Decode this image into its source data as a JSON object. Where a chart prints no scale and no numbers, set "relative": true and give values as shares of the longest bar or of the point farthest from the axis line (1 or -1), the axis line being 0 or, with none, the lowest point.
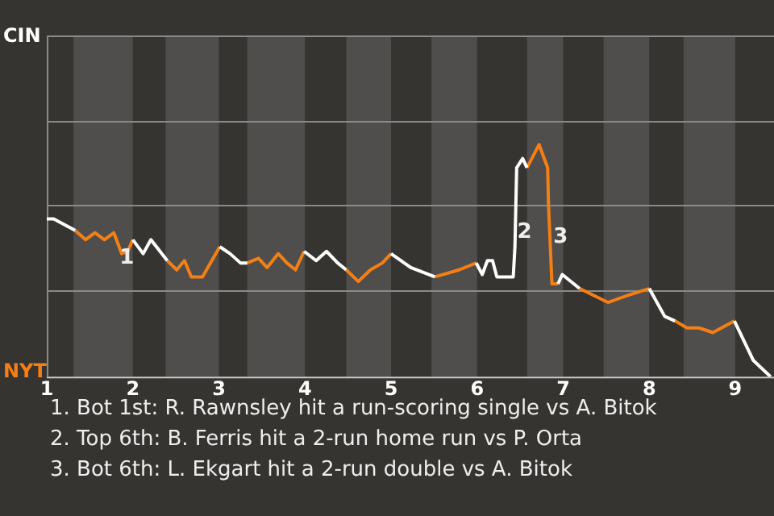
{
  "chart_data": {
    "type": "line",
    "relative": true,
    "legend": "left",
    "marker": "none",
    "line_style": "solid",
    "x": [
      1.0,
      1.08,
      1.33,
      1.45,
      1.56,
      1.67,
      1.78,
      1.87,
      1.94,
      2.0,
      2.12,
      2.21,
      2.4,
      2.51,
      2.6,
      2.68,
      2.81,
      3.01,
      3.13,
      3.25,
      3.33,
      3.46,
      3.56,
      3.69,
      3.79,
      3.89,
      3.99,
      4.13,
      4.25,
      4.38,
      4.48,
      4.62,
      4.76,
      4.9,
      5.0,
      5.23,
      5.51,
      5.79,
      5.99,
      6.06,
      6.12,
      6.18,
      6.23,
      6.42,
      6.44,
      6.46,
      6.53,
      6.58,
      6.72,
      6.82,
      6.83,
      6.87,
      6.94,
      6.99,
      7.19,
      7.52,
      7.75,
      8.0,
      8.18,
      8.3,
      8.44,
      8.58,
      8.74,
      8.99,
      9.21,
      9.41
    ],
    "xlim": [
      1,
      9.45
    ],
    "xticks": [
      1,
      2,
      3,
      4,
      5,
      6,
      7,
      8,
      9
    ],
    "series": [
      {
        "name": "CIN",
        "color": "#ffffff",
        "values": [
          0.68,
          0.68,
          0.63,
          null,
          null,
          null,
          null,
          null,
          null,
          0.59,
          0.53,
          0.59,
          0.5,
          null,
          null,
          null,
          null,
          0.56,
          0.53,
          0.49,
          0.49,
          null,
          null,
          null,
          null,
          null,
          0.54,
          0.5,
          0.54,
          0.49,
          0.46,
          null,
          null,
          null,
          0.53,
          0.47,
          0.43,
          null,
          0.49,
          0.44,
          0.5,
          0.5,
          0.43,
          0.43,
          0.56,
          0.9,
          0.94,
          0.9,
          null,
          null,
          null,
          null,
          0.4,
          0.44,
          0.38,
          null,
          null,
          0.38,
          0.26,
          0.24,
          null,
          null,
          null,
          0.24,
          0.07,
          0
        ]
      },
      {
        "name": "NYT",
        "color": "#f47f14",
        "values": [
          null,
          null,
          0.63,
          0.59,
          0.62,
          0.59,
          0.62,
          0.53,
          0.54,
          0.59,
          null,
          null,
          0.5,
          0.46,
          0.5,
          0.43,
          0.43,
          0.56,
          null,
          null,
          0.49,
          0.51,
          0.47,
          0.53,
          0.49,
          0.46,
          0.54,
          null,
          null,
          null,
          0.46,
          0.41,
          0.46,
          0.49,
          0.53,
          null,
          0.43,
          0.46,
          0.49,
          null,
          null,
          null,
          null,
          null,
          null,
          null,
          null,
          0.9,
          1,
          0.9,
          0.74,
          0.4,
          0.4,
          null,
          0.38,
          0.32,
          0.35,
          0.38,
          null,
          0.24,
          0.21,
          0.21,
          0.19,
          0.24,
          null,
          null
        ]
      }
    ],
    "bands": [
      {
        "axis": "x",
        "from": 1.31,
        "to": 2.0,
        "color": "#4f4e4c"
      },
      {
        "axis": "x",
        "from": 2.38,
        "to": 3.0,
        "color": "#4f4e4c"
      },
      {
        "axis": "x",
        "from": 3.33,
        "to": 4.0,
        "color": "#4f4e4c"
      },
      {
        "axis": "x",
        "from": 4.48,
        "to": 5.0,
        "color": "#4f4e4c"
      },
      {
        "axis": "x",
        "from": 5.47,
        "to": 6.0,
        "color": "#4f4e4c"
      },
      {
        "axis": "x",
        "from": 6.58,
        "to": 7.0,
        "color": "#4f4e4c"
      },
      {
        "axis": "x",
        "from": 7.47,
        "to": 8.0,
        "color": "#4f4e4c"
      },
      {
        "axis": "x",
        "from": 8.4,
        "to": 9.0,
        "color": "#4f4e4c"
      }
    ],
    "ref_lines": [
      {
        "axis": "y",
        "value": 0.37,
        "color": "#8a8a8a"
      },
      {
        "axis": "y",
        "value": 0.74,
        "color": "#8a8a8a"
      },
      {
        "axis": "y",
        "value": 1.1,
        "color": "#8a8a8a"
      }
    ],
    "annotations": [
      {
        "text": "1",
        "x": 1.93,
        "y": 0.51
      },
      {
        "text": "2",
        "x": 6.55,
        "y": 0.62
      },
      {
        "text": "3",
        "x": 6.97,
        "y": 0.6
      },
      "1. Bot 1st: R. Rawnsley hit a run-scoring single vs A. Bitok",
      "2. Top 6th: B. Ferris hit a 2-run home run vs P. Orta",
      "3. Bot 6th: L. Ekgart hit a 2-run double vs A. Bitok"
    ]
  }
}
